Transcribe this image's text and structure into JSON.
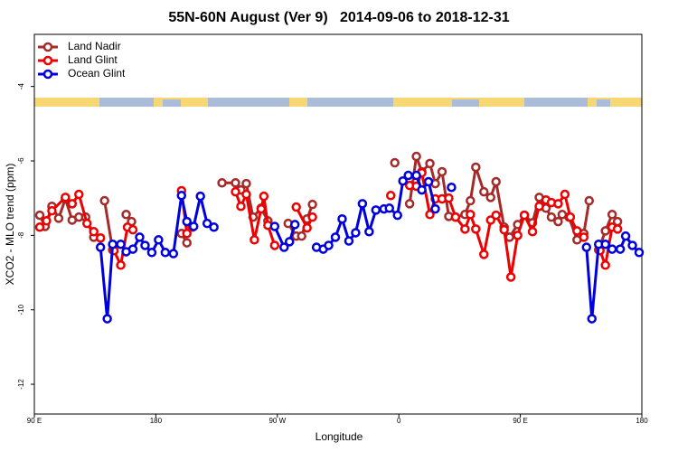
{
  "chart_data": {
    "type": "line",
    "title": "55N-60N August (Ver 9)   2014-09-06 to 2018-12-31",
    "x_label": "Longitude",
    "y_label": "XCO2 - MLO trend (ppm)",
    "xlim": [
      90,
      540
    ],
    "ylim": [
      -12.8,
      -2.6
    ],
    "xticks": [
      {
        "value": 90,
        "label": "90 E"
      },
      180,
      {
        "value": 270,
        "label": "90 W"
      },
      {
        "value": 360,
        "label": "0"
      },
      {
        "value": 450,
        "label": "90 E"
      },
      {
        "value": 540,
        "label": "180"
      }
    ],
    "yticks": [
      -12,
      -10,
      -8,
      -6,
      -4
    ],
    "legend": "top-left",
    "series": [
      {
        "name": "Land Nadir",
        "color": "#a52a2a",
        "x": [
          94,
          98,
          103,
          108,
          113,
          118,
          123,
          128,
          134,
          null,
          142,
          148,
          null,
          158,
          162,
          null,
          199,
          203,
          null,
          229,
          239,
          243,
          247,
          252,
          258,
          263,
          null,
          278,
          284,
          288,
          292,
          296,
          null,
          357,
          null,
          368,
          373,
          377,
          383,
          387,
          392,
          397,
          402,
          409,
          413,
          417,
          423,
          428,
          432,
          438,
          442,
          448,
          453,
          459,
          464,
          469,
          473,
          478,
          481,
          486,
          492,
          497,
          501,
          null,
          508,
          513,
          518,
          522
        ],
        "values": [
          -7.46,
          -7.76,
          -7.22,
          -7.54,
          -7.02,
          -7.59,
          -7.51,
          -7.51,
          -8.05,
          null,
          -7.07,
          -8.39,
          null,
          -7.44,
          -7.63,
          null,
          -7.95,
          -8.2,
          null,
          -6.59,
          -6.59,
          -6.78,
          -6.61,
          -7.51,
          -7.27,
          -7.61,
          null,
          -7.68,
          -8.02,
          -8.02,
          -7.56,
          -7.17,
          null,
          -6.05,
          null,
          -7.15,
          -5.88,
          -6.29,
          -6.07,
          -6.61,
          -6.29,
          -7.49,
          -7.51,
          -7.44,
          -7.07,
          -6.17,
          -6.83,
          -6.98,
          -6.56,
          -7.78,
          -8.05,
          -7.71,
          -7.46,
          -7.66,
          -6.98,
          -7.27,
          -7.51,
          -7.63,
          -7.44,
          -7.51,
          -8.12,
          -7.95,
          -7.07,
          null,
          -8.39,
          -7.88,
          -7.44,
          -7.63
        ]
      },
      {
        "name": "Land Glint",
        "color": "#ee0000",
        "x": [
          94,
          99,
          103,
          113,
          118,
          123,
          129,
          134,
          139,
          null,
          149,
          154,
          159,
          163,
          null,
          199,
          203,
          207,
          null,
          239,
          243,
          247,
          253,
          258,
          260,
          263,
          268,
          null,
          284,
          292,
          296,
          null,
          354,
          null,
          368,
          373,
          377,
          383,
          387,
          392,
          397,
          402,
          409,
          413,
          417,
          423,
          428,
          432,
          438,
          443,
          448,
          453,
          459,
          464,
          469,
          473,
          478,
          483,
          487,
          492,
          497,
          null,
          509,
          513,
          518,
          522
        ],
        "values": [
          -7.78,
          -7.61,
          -7.34,
          -6.98,
          -7.15,
          -6.9,
          -7.68,
          -7.9,
          -8.07,
          null,
          -8.41,
          -8.8,
          -7.78,
          -7.85,
          null,
          -6.8,
          -7.95,
          -7.78,
          null,
          -6.83,
          -7.22,
          -6.9,
          -8.12,
          -7.29,
          -6.95,
          -7.73,
          -8.27,
          null,
          -7.24,
          -7.8,
          -7.51,
          null,
          -6.93,
          null,
          -6.66,
          -6.68,
          -6.32,
          -7.44,
          -7.02,
          -7.02,
          -7.0,
          -7.51,
          -7.83,
          -7.44,
          -7.83,
          -8.51,
          -7.59,
          -7.46,
          -7.85,
          -9.12,
          -8.0,
          -7.46,
          -7.9,
          -7.22,
          -7.05,
          -7.12,
          -7.15,
          -6.9,
          -7.51,
          -7.88,
          -8.05,
          null,
          -8.41,
          -8.8,
          -7.78,
          -7.83
        ]
      },
      {
        "name": "Ocean Glint",
        "color": "#0000dd",
        "x": [
          139,
          144,
          148,
          154,
          158,
          163,
          168,
          172,
          177,
          182,
          187,
          193,
          199,
          203,
          208,
          213,
          218,
          223,
          null,
          268,
          275,
          279,
          283,
          null,
          299,
          304,
          308,
          313,
          318,
          323,
          328,
          333,
          338,
          343,
          349,
          353,
          359,
          363,
          367,
          373,
          377,
          382,
          387,
          null,
          399,
          null,
          499,
          503,
          508,
          513,
          518,
          524,
          528,
          533,
          538
        ],
        "values": [
          -8.32,
          -10.24,
          -8.24,
          -8.24,
          -8.44,
          -8.37,
          -8.05,
          -8.27,
          -8.46,
          -8.12,
          -8.46,
          -8.49,
          -6.93,
          -7.63,
          -7.76,
          -6.95,
          -7.68,
          -7.78,
          null,
          -7.76,
          -8.32,
          -8.17,
          -7.71,
          null,
          -8.32,
          -8.37,
          -8.27,
          -8.05,
          -7.56,
          -8.15,
          -7.93,
          -7.15,
          -7.9,
          -7.32,
          -7.29,
          -7.27,
          -7.46,
          -6.54,
          -6.39,
          -6.39,
          -6.78,
          -6.56,
          -7.29,
          null,
          -6.71,
          null,
          -8.32,
          -10.24,
          -8.24,
          -8.24,
          -8.37,
          -8.37,
          -8.02,
          -8.27,
          -8.46
        ]
      }
    ]
  }
}
